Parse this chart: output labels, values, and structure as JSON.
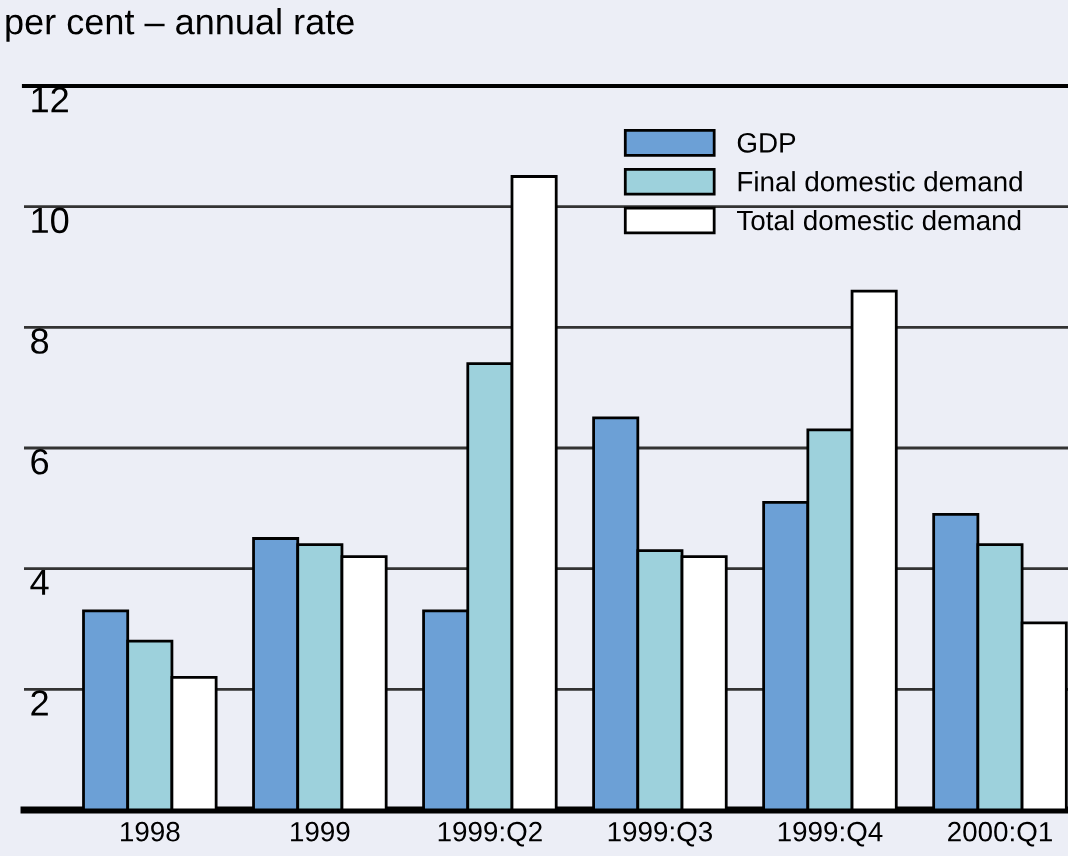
{
  "chart_data": {
    "type": "bar",
    "title": "per cent – annual rate",
    "categories": [
      "1998",
      "1999",
      "1999:Q2",
      "1999:Q3",
      "1999:Q4",
      "2000:Q1"
    ],
    "series": [
      {
        "name": "GDP",
        "color": "#6ca0d6",
        "values": [
          3.3,
          4.5,
          3.3,
          6.5,
          5.1,
          4.9
        ]
      },
      {
        "name": "Final domestic demand",
        "color": "#9dd1dc",
        "values": [
          2.8,
          4.4,
          7.4,
          4.3,
          6.3,
          4.4
        ]
      },
      {
        "name": "Total domestic demand",
        "color": "#ffffff",
        "values": [
          2.2,
          4.2,
          10.5,
          4.2,
          8.6,
          3.1
        ]
      }
    ],
    "ylim": [
      0,
      12
    ],
    "yticks": [
      {
        "value": 0,
        "label": null
      },
      2,
      4,
      6,
      8,
      10,
      12
    ],
    "grid": "y",
    "legend": "top right"
  }
}
